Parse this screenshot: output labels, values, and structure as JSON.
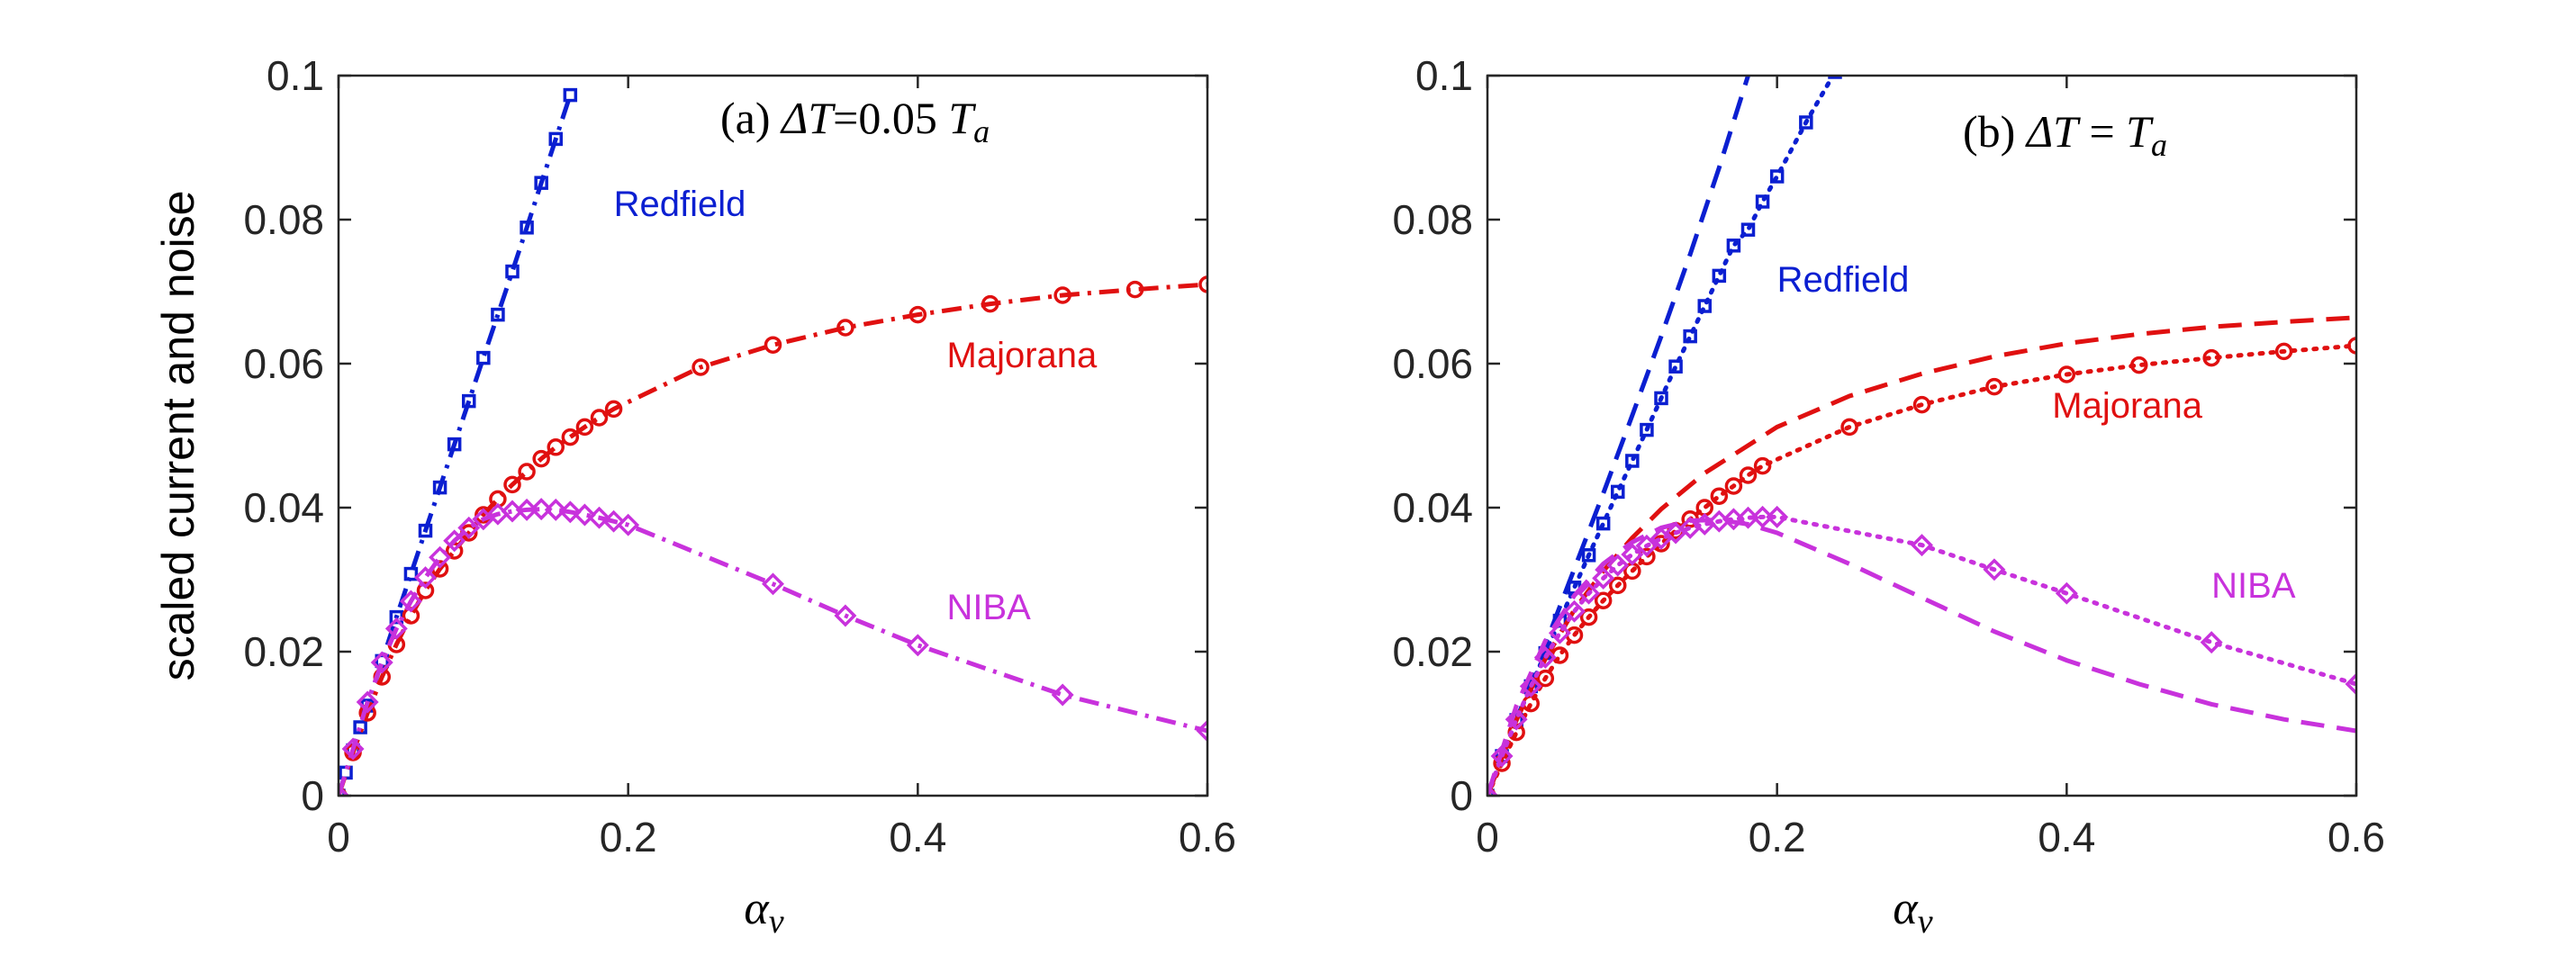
{
  "chart_data": [
    {
      "type": "line",
      "panel_label": "(a) ",
      "title_math": {
        "delta": "ΔT",
        "eq": "=0.05 ",
        "var": "T",
        "sub": "a"
      },
      "xlabel": {
        "symbol": "α",
        "sub": "ν"
      },
      "ylabel": "scaled current and noise",
      "xlim": [
        0,
        0.6
      ],
      "ylim": [
        0,
        0.1
      ],
      "xticks": [
        "0",
        "0.2",
        "0.4",
        "0.6"
      ],
      "yticks": [
        "0",
        "0.02",
        "0.04",
        "0.06",
        "0.08",
        "0.1"
      ],
      "xtick_values": [
        0,
        0.2,
        0.4,
        0.6
      ],
      "ytick_values": [
        0,
        0.02,
        0.04,
        0.06,
        0.08,
        0.1
      ],
      "series": [
        {
          "name": "Redfield",
          "color": "#0b1fd1",
          "line_style": "dashdot",
          "marker": "square",
          "label_at": [
            0.19,
            0.0805
          ],
          "x": [
            0,
            0.005,
            0.01,
            0.015,
            0.02,
            0.03,
            0.04,
            0.05,
            0.06,
            0.07,
            0.08,
            0.09,
            0.1,
            0.11,
            0.12,
            0.13,
            0.14,
            0.15,
            0.16
          ],
          "y": [
            0,
            0.0032,
            0.0063,
            0.0095,
            0.0125,
            0.0187,
            0.0248,
            0.0308,
            0.0368,
            0.0428,
            0.0488,
            0.0548,
            0.0608,
            0.0668,
            0.0728,
            0.0789,
            0.0851,
            0.0912,
            0.0973
          ]
        },
        {
          "name": "Majorana",
          "color": "#e01010",
          "line_style": "dashdot",
          "marker": "circle",
          "label_at": [
            0.42,
            0.0595
          ],
          "x": [
            0,
            0.01,
            0.02,
            0.03,
            0.04,
            0.05,
            0.06,
            0.07,
            0.08,
            0.09,
            0.1,
            0.11,
            0.12,
            0.13,
            0.14,
            0.15,
            0.16,
            0.17,
            0.18,
            0.19,
            0.25,
            0.3,
            0.35,
            0.4,
            0.45,
            0.5,
            0.55,
            0.6
          ],
          "y": [
            0,
            0.006,
            0.0115,
            0.0165,
            0.021,
            0.025,
            0.0285,
            0.0315,
            0.034,
            0.0365,
            0.039,
            0.0412,
            0.0432,
            0.045,
            0.0468,
            0.0484,
            0.0498,
            0.0512,
            0.0525,
            0.0537,
            0.0595,
            0.0626,
            0.065,
            0.0668,
            0.0683,
            0.0695,
            0.0703,
            0.071
          ]
        },
        {
          "name": "NIBA",
          "color": "#c832dc",
          "line_style": "dashdot",
          "marker": "diamond",
          "label_at": [
            0.42,
            0.0245
          ],
          "x": [
            0,
            0.01,
            0.02,
            0.03,
            0.04,
            0.05,
            0.06,
            0.07,
            0.08,
            0.09,
            0.1,
            0.11,
            0.12,
            0.13,
            0.14,
            0.15,
            0.16,
            0.17,
            0.18,
            0.19,
            0.2,
            0.3,
            0.35,
            0.4,
            0.5,
            0.6
          ],
          "y": [
            0,
            0.0065,
            0.013,
            0.0185,
            0.0232,
            0.027,
            0.0303,
            0.0331,
            0.0354,
            0.0372,
            0.0384,
            0.0391,
            0.0395,
            0.0397,
            0.0398,
            0.0397,
            0.0394,
            0.039,
            0.0386,
            0.0381,
            0.0376,
            0.0294,
            0.025,
            0.0209,
            0.014,
            0.009
          ]
        }
      ]
    },
    {
      "type": "line",
      "panel_label": "(b) ",
      "title_math": {
        "delta": "ΔT",
        "eq": " = ",
        "var": "T",
        "sub": "a"
      },
      "xlabel": {
        "symbol": "α",
        "sub": "ν"
      },
      "ylabel": "",
      "xlim": [
        0,
        0.6
      ],
      "ylim": [
        0,
        0.1
      ],
      "xticks": [
        "0",
        "0.2",
        "0.4",
        "0.6"
      ],
      "yticks": [
        "0",
        "0.02",
        "0.04",
        "0.06",
        "0.08",
        "0.1"
      ],
      "xtick_values": [
        0,
        0.2,
        0.4,
        0.6
      ],
      "ytick_values": [
        0,
        0.02,
        0.04,
        0.06,
        0.08,
        0.1
      ],
      "series": [
        {
          "name": "Redfield",
          "color": "#0b1fd1",
          "line_style": "dotted",
          "marker": "square",
          "label_at": [
            0.2,
            0.07
          ],
          "x": [
            0,
            0.01,
            0.02,
            0.03,
            0.04,
            0.05,
            0.06,
            0.07,
            0.08,
            0.09,
            0.1,
            0.11,
            0.12,
            0.13,
            0.14,
            0.15,
            0.16,
            0.17,
            0.18,
            0.19,
            0.2,
            0.22,
            0.24
          ],
          "y": [
            0,
            0.0055,
            0.0105,
            0.0152,
            0.0198,
            0.0243,
            0.0289,
            0.0334,
            0.0378,
            0.0422,
            0.0465,
            0.0508,
            0.0552,
            0.0596,
            0.0638,
            0.068,
            0.0722,
            0.0764,
            0.0786,
            0.0825,
            0.086,
            0.0935,
            0.1005
          ]
        },
        {
          "name": "",
          "color": "#0b1fd1",
          "line_style": "dashed",
          "marker": "none",
          "x": [
            0,
            0.02,
            0.04,
            0.06,
            0.08,
            0.1,
            0.12,
            0.14,
            0.16,
            0.18
          ],
          "y": [
            0,
            0.0105,
            0.021,
            0.0315,
            0.042,
            0.0528,
            0.0638,
            0.0752,
            0.0872,
            0.1
          ]
        },
        {
          "name": "Majorana",
          "color": "#e01010",
          "line_style": "dotted",
          "marker": "circle",
          "label_at": [
            0.39,
            0.0525
          ],
          "x": [
            0,
            0.01,
            0.02,
            0.03,
            0.04,
            0.05,
            0.06,
            0.07,
            0.08,
            0.09,
            0.1,
            0.11,
            0.12,
            0.13,
            0.14,
            0.15,
            0.16,
            0.17,
            0.18,
            0.19,
            0.25,
            0.3,
            0.35,
            0.4,
            0.45,
            0.5,
            0.55,
            0.6
          ],
          "y": [
            0,
            0.0045,
            0.0088,
            0.0128,
            0.0163,
            0.0195,
            0.0223,
            0.0248,
            0.0271,
            0.0292,
            0.0312,
            0.0332,
            0.035,
            0.0368,
            0.0384,
            0.04,
            0.0416,
            0.043,
            0.0445,
            0.0458,
            0.0512,
            0.0543,
            0.0568,
            0.0585,
            0.0598,
            0.0608,
            0.0617,
            0.0625
          ]
        },
        {
          "name": "",
          "color": "#e01010",
          "line_style": "dashed",
          "marker": "none",
          "x": [
            0,
            0.02,
            0.04,
            0.06,
            0.08,
            0.1,
            0.12,
            0.15,
            0.2,
            0.25,
            0.3,
            0.35,
            0.4,
            0.45,
            0.5,
            0.55,
            0.6
          ],
          "y": [
            0,
            0.0105,
            0.019,
            0.0258,
            0.0312,
            0.0358,
            0.0398,
            0.0448,
            0.0512,
            0.0555,
            0.0586,
            0.061,
            0.0628,
            0.0641,
            0.0651,
            0.0658,
            0.0664
          ]
        },
        {
          "name": "NIBA",
          "color": "#c832dc",
          "line_style": "dotted",
          "marker": "diamond",
          "label_at": [
            0.5,
            0.0275
          ],
          "x": [
            0,
            0.01,
            0.02,
            0.03,
            0.04,
            0.05,
            0.06,
            0.07,
            0.08,
            0.09,
            0.1,
            0.11,
            0.12,
            0.13,
            0.14,
            0.15,
            0.16,
            0.17,
            0.18,
            0.19,
            0.2,
            0.3,
            0.35,
            0.4,
            0.5,
            0.6
          ],
          "y": [
            0,
            0.0055,
            0.0106,
            0.0152,
            0.0192,
            0.0226,
            0.0256,
            0.0281,
            0.0302,
            0.032,
            0.0335,
            0.0347,
            0.0357,
            0.0365,
            0.0372,
            0.0377,
            0.0381,
            0.0384,
            0.0386,
            0.0387,
            0.0387,
            0.0348,
            0.0314,
            0.0281,
            0.0213,
            0.0155
          ]
        },
        {
          "name": "",
          "color": "#c832dc",
          "line_style": "dashed",
          "marker": "none",
          "x": [
            0,
            0.02,
            0.04,
            0.06,
            0.08,
            0.1,
            0.12,
            0.14,
            0.16,
            0.18,
            0.2,
            0.25,
            0.3,
            0.35,
            0.4,
            0.45,
            0.5,
            0.55,
            0.6
          ],
          "y": [
            0,
            0.0125,
            0.0215,
            0.0278,
            0.0322,
            0.0352,
            0.0372,
            0.0382,
            0.0383,
            0.0377,
            0.0365,
            0.0322,
            0.0275,
            0.0228,
            0.0188,
            0.0155,
            0.0127,
            0.0106,
            0.009
          ]
        }
      ]
    }
  ]
}
